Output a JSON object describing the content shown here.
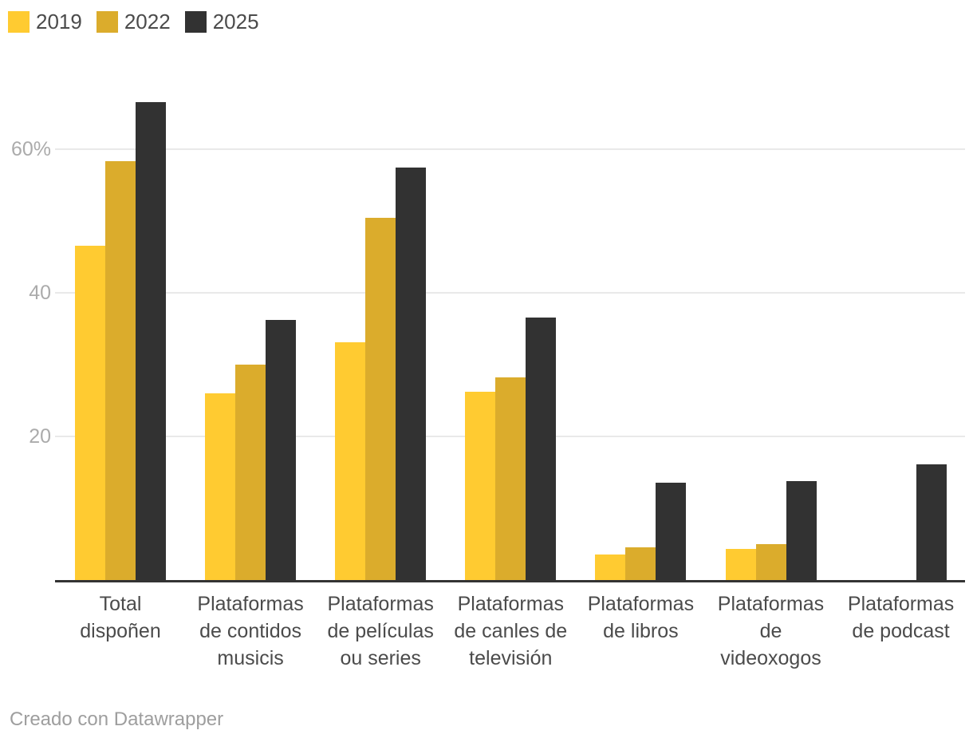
{
  "chart_data": {
    "type": "bar",
    "title": "",
    "unit": "%",
    "categories": [
      "Total dispoñen",
      "Plataformas de contidos musicis",
      "Plataformas de películas ou series",
      "Plataformas de canles de televisión",
      "Plataformas de libros",
      "Plataformas de videoxogos",
      "Plataformas de podcast"
    ],
    "categories_wrapped": [
      [
        "Total",
        "dispoñen"
      ],
      [
        "Plataformas",
        "de contidos",
        "musicis"
      ],
      [
        "Plataformas",
        "de películas",
        "ou series"
      ],
      [
        "Plataformas",
        "de canles de",
        "televisión"
      ],
      [
        "Plataformas",
        "de libros"
      ],
      [
        "Plataformas",
        "de",
        "videoxogos"
      ],
      [
        "Plataformas",
        "de podcast"
      ]
    ],
    "series": [
      {
        "name": "2019",
        "color": "#FFCB31",
        "values": [
          46.6,
          26.0,
          33.1,
          26.2,
          3.6,
          4.3,
          0
        ]
      },
      {
        "name": "2022",
        "color": "#DBAC2C",
        "values": [
          58.3,
          30.0,
          50.4,
          28.2,
          4.6,
          5.0,
          0
        ]
      },
      {
        "name": "2025",
        "color": "#323232",
        "values": [
          66.6,
          36.2,
          57.5,
          36.6,
          13.6,
          13.8,
          16.1
        ]
      }
    ],
    "y_axis": {
      "ticks": [
        {
          "value": 20,
          "label": "20"
        },
        {
          "value": 40,
          "label": "40"
        },
        {
          "value": 60,
          "label": "60%"
        }
      ],
      "range": [
        0,
        70
      ]
    },
    "grid": true,
    "legend_position": "top-left",
    "colors": {
      "axis_line": "#333333",
      "gridline": "#E9E9E9",
      "tick_label": "#ABABAB",
      "category_label": "#4B4B4B",
      "footer_text": "#9E9E9E"
    }
  },
  "footer": {
    "credit": "Creado con Datawrapper"
  }
}
